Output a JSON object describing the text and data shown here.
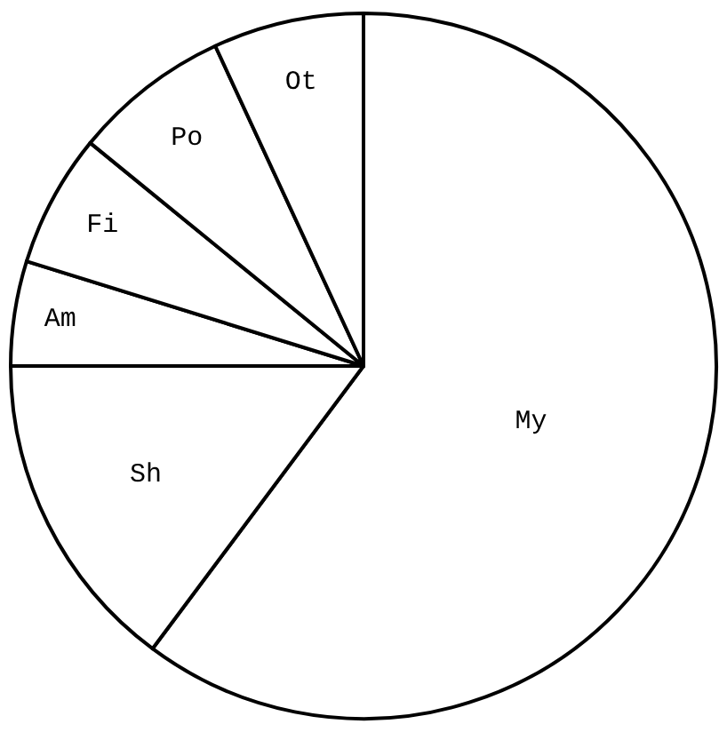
{
  "chart_data": {
    "type": "pie",
    "categories": [
      "My",
      "Sh",
      "Am",
      "Fi",
      "Po",
      "Ot"
    ],
    "values": [
      60.2,
      14.8,
      4.8,
      6.1,
      7.2,
      6.9
    ],
    "colors": [
      "#ffffff",
      "#ffffff",
      "#ffffff",
      "#ffffff",
      "#ffffff",
      "#ffffff"
    ],
    "legend": false
  }
}
